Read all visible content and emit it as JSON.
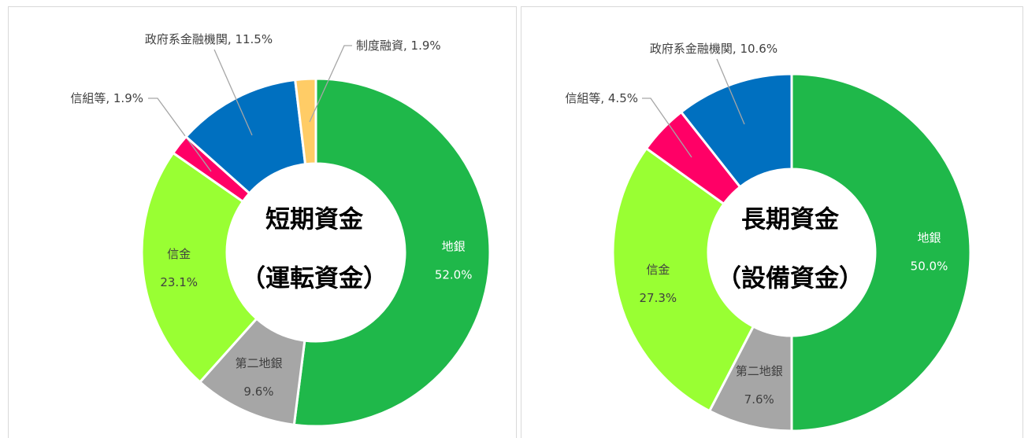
{
  "chart_data": [
    {
      "type": "donut",
      "center_text": [
        "短期資金",
        "（運転資金）"
      ],
      "categories": [
        "地銀",
        "第二地銀",
        "信金",
        "信組等",
        "政府系金融機関",
        "制度融資"
      ],
      "values": [
        52.0,
        9.6,
        23.1,
        1.9,
        11.5,
        1.9
      ],
      "value_labels": [
        "52.0%",
        "9.6%",
        "23.1%",
        ", 1.9%",
        ", 11.5%",
        ", 1.9%"
      ],
      "colors": [
        "#1fb84a",
        "#a6a6a6",
        "#99ff33",
        "#ff0066",
        "#0070c0",
        "#ffcc66"
      ]
    },
    {
      "type": "donut",
      "center_text": [
        "長期資金",
        "（設備資金）"
      ],
      "categories": [
        "地銀",
        "第二地銀",
        "信金",
        "信組等",
        "政府系金融機関"
      ],
      "values": [
        50.0,
        7.6,
        27.3,
        4.5,
        10.6
      ],
      "value_labels": [
        "50.0%",
        "7.6%",
        "27.3%",
        ", 4.5%",
        ", 10.6%"
      ],
      "colors": [
        "#1fb84a",
        "#a6a6a6",
        "#99ff33",
        "#ff0066",
        "#0070c0"
      ]
    }
  ]
}
